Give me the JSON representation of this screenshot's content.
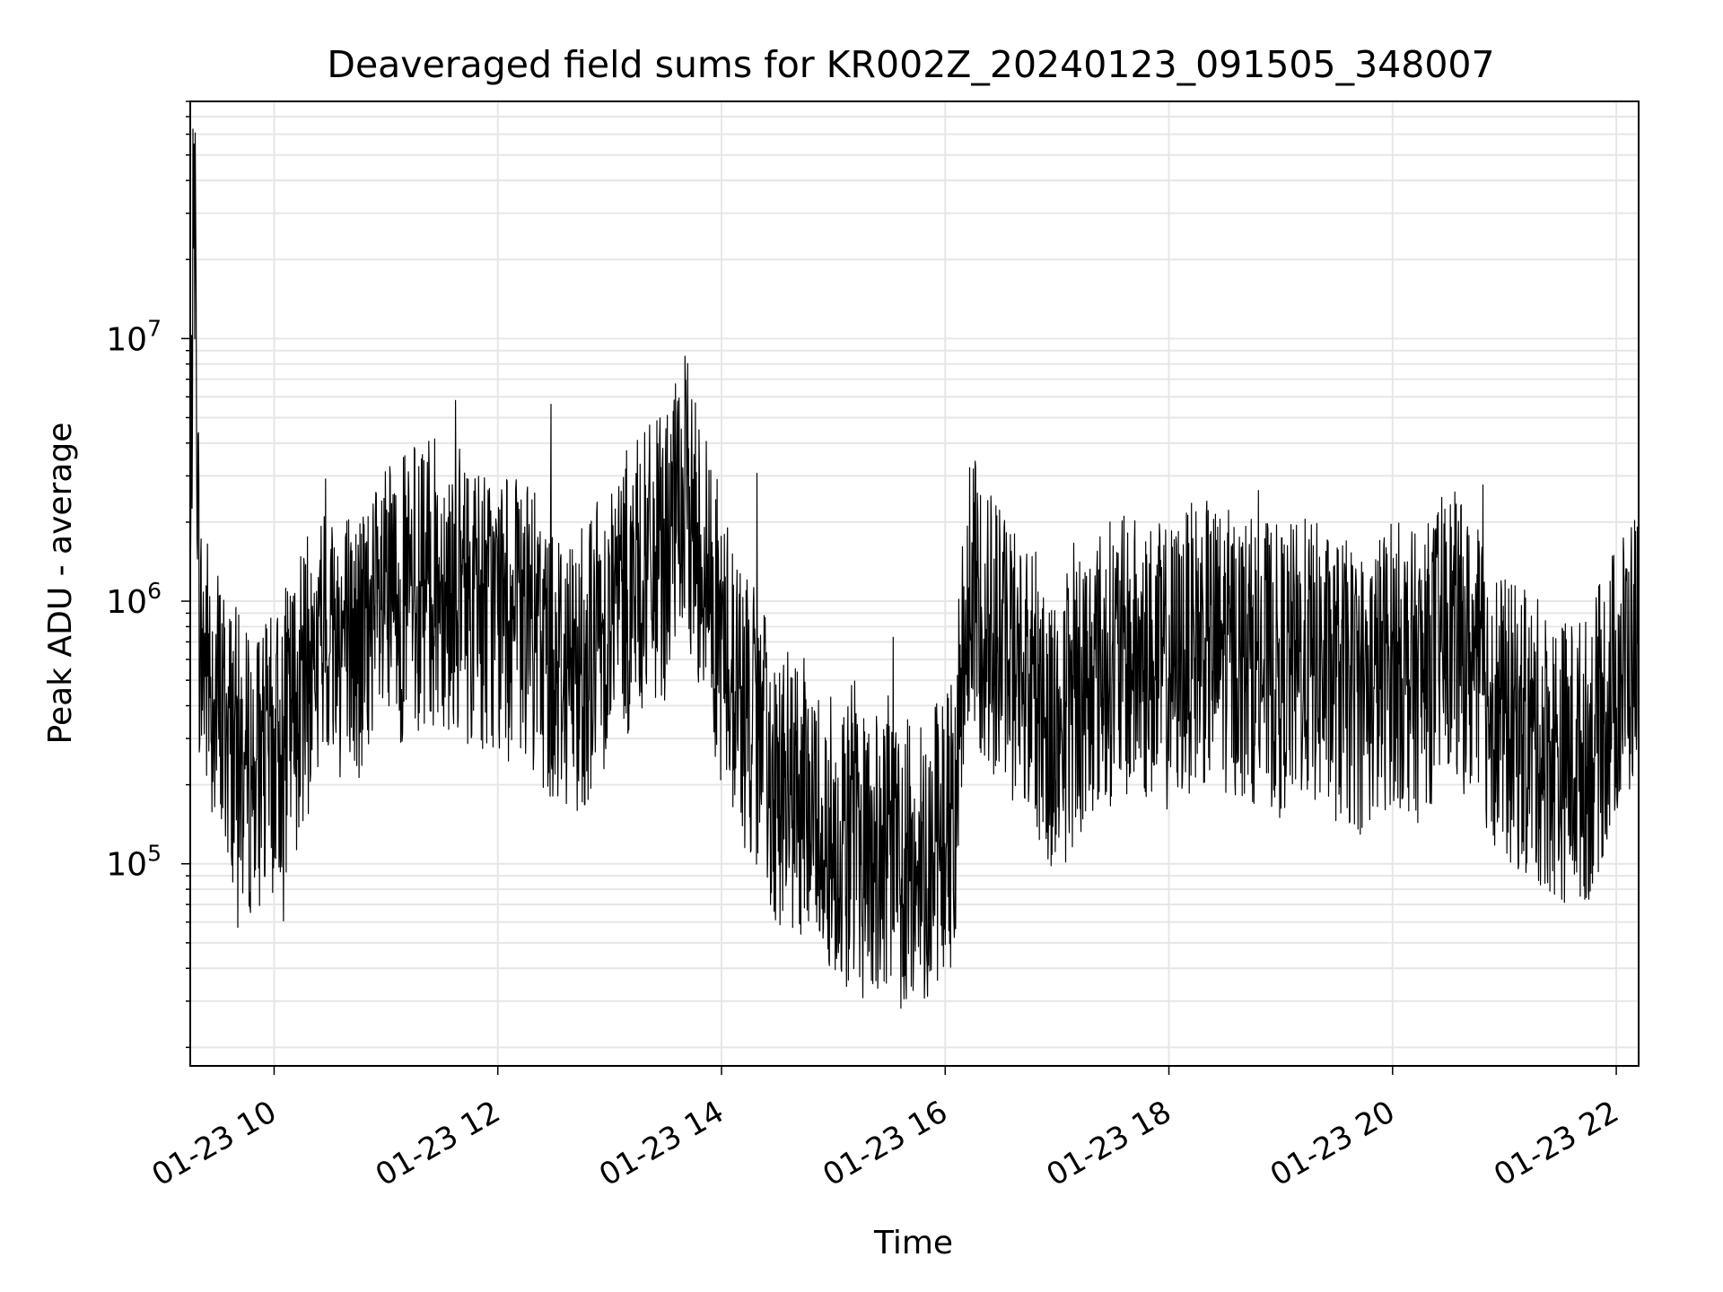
{
  "chart_data": {
    "type": "line",
    "title": "Deaveraged field sums for KR002Z_20240123_091505_348007",
    "xlabel": "Time",
    "ylabel": "Peak ADU - average",
    "yscale": "log",
    "xlim": [
      "2024-01-23 09:15",
      "2024-01-23 22:12"
    ],
    "ylim": [
      17000,
      80000000
    ],
    "grid": true,
    "x_ticks": [
      {
        "value": "2024-01-23 10:00",
        "label": "01-23 10"
      },
      {
        "value": "2024-01-23 12:00",
        "label": "01-23 12"
      },
      {
        "value": "2024-01-23 14:00",
        "label": "01-23 14"
      },
      {
        "value": "2024-01-23 16:00",
        "label": "01-23 16"
      },
      {
        "value": "2024-01-23 18:00",
        "label": "01-23 18"
      },
      {
        "value": "2024-01-23 20:00",
        "label": "01-23 20"
      },
      {
        "value": "2024-01-23 22:00",
        "label": "01-23 22"
      }
    ],
    "y_ticks": [
      {
        "value": 100000,
        "base": "10",
        "exp": "5"
      },
      {
        "value": 1000000,
        "base": "10",
        "exp": "6"
      },
      {
        "value": 10000000,
        "base": "10",
        "exp": "7"
      }
    ],
    "line_color": "#000000",
    "grid_color": "#e6e6e6",
    "series": [
      {
        "x": [
          "2024-01-23 09:15",
          "2024-01-23 09:17",
          "2024-01-23 09:20",
          "2024-01-23 09:30",
          "2024-01-23 09:45",
          "2024-01-23 10:00",
          "2024-01-23 10:15",
          "2024-01-23 10:30",
          "2024-01-23 10:45",
          "2024-01-23 11:00",
          "2024-01-23 11:15",
          "2024-01-23 11:30",
          "2024-01-23 11:45",
          "2024-01-23 12:00",
          "2024-01-23 12:15",
          "2024-01-23 12:30",
          "2024-01-23 12:45",
          "2024-01-23 13:00",
          "2024-01-23 13:15",
          "2024-01-23 13:30",
          "2024-01-23 13:40",
          "2024-01-23 13:50",
          "2024-01-23 14:00",
          "2024-01-23 14:15",
          "2024-01-23 14:30",
          "2024-01-23 14:45",
          "2024-01-23 15:00",
          "2024-01-23 15:15",
          "2024-01-23 15:30",
          "2024-01-23 15:45",
          "2024-01-23 15:55",
          "2024-01-23 16:05",
          "2024-01-23 16:10",
          "2024-01-23 16:15",
          "2024-01-23 16:30",
          "2024-01-23 16:45",
          "2024-01-23 17:00",
          "2024-01-23 17:15",
          "2024-01-23 17:30",
          "2024-01-23 17:45",
          "2024-01-23 18:00",
          "2024-01-23 18:15",
          "2024-01-23 18:30",
          "2024-01-23 18:45",
          "2024-01-23 19:00",
          "2024-01-23 19:15",
          "2024-01-23 19:30",
          "2024-01-23 19:45",
          "2024-01-23 20:00",
          "2024-01-23 20:15",
          "2024-01-23 20:30",
          "2024-01-23 20:45",
          "2024-01-23 21:00",
          "2024-01-23 21:15",
          "2024-01-23 21:30",
          "2024-01-23 21:45",
          "2024-01-23 22:00",
          "2024-01-23 22:12"
        ],
        "y": [
          900000,
          55000000,
          700000,
          400000,
          220000,
          250000,
          450000,
          800000,
          650000,
          900000,
          1100000,
          1200000,
          1000000,
          900000,
          800000,
          600000,
          550000,
          900000,
          1200000,
          1500000,
          2500000,
          1500000,
          700000,
          350000,
          200000,
          170000,
          130000,
          110000,
          100000,
          100000,
          120000,
          150000,
          900000,
          1000000,
          700000,
          500000,
          300000,
          500000,
          600000,
          600000,
          550000,
          700000,
          650000,
          600000,
          550000,
          600000,
          500000,
          450000,
          600000,
          500000,
          800000,
          550000,
          350000,
          300000,
          250000,
          250000,
          500000,
          700000
        ]
      }
    ]
  }
}
